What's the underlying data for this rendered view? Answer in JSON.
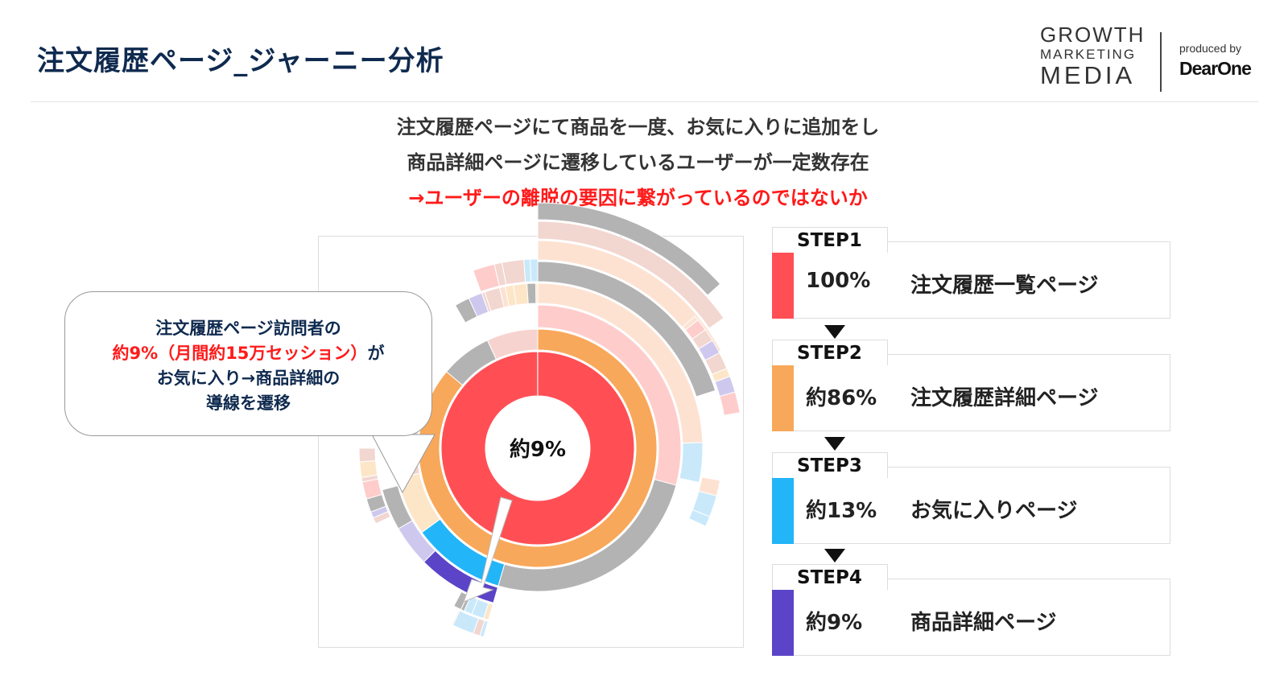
{
  "title": "注文履歴ページ_ジャーニー分析",
  "logo": {
    "line1": "GROWTH",
    "line2": "MARKETING",
    "line3": "MEDIA",
    "produced_by": "produced by",
    "brand": "DearOne",
    "accent": "#2ecc71"
  },
  "message": {
    "line1": "注文履歴ページにて商品を一度、お気に入りに追加をし",
    "line2": "商品詳細ページに遷移しているユーザーが一定数存在",
    "line3": "→ユーザーの離脱の要因に繋がっているのではないか"
  },
  "callout": {
    "line1": "注文履歴ページ訪問者の",
    "line2_red": "約9%（月間約15万セッション）",
    "line2_rest": "が",
    "line3": "お気に入り→商品詳細の",
    "line4": "導線を遷移"
  },
  "chart": {
    "center_label": "約9%",
    "colors": {
      "step1": "#ff4f55",
      "step2": "#f8a85a",
      "step3": "#22b5f8",
      "step4": "#5b44c8",
      "other": "#b3b3b3"
    }
  },
  "steps": [
    {
      "label": "STEP1",
      "percent": "100%",
      "page": "注文履歴一覧ページ",
      "color": "#ff4f55"
    },
    {
      "label": "STEP2",
      "percent": "約86%",
      "page": "注文履歴詳細ページ",
      "color": "#f8a85a"
    },
    {
      "label": "STEP3",
      "percent": "約13%",
      "page": "お気に入りページ",
      "color": "#22b5f8"
    },
    {
      "label": "STEP4",
      "percent": "約9%",
      "page": "商品詳細ページ",
      "color": "#5b44c8"
    }
  ]
}
